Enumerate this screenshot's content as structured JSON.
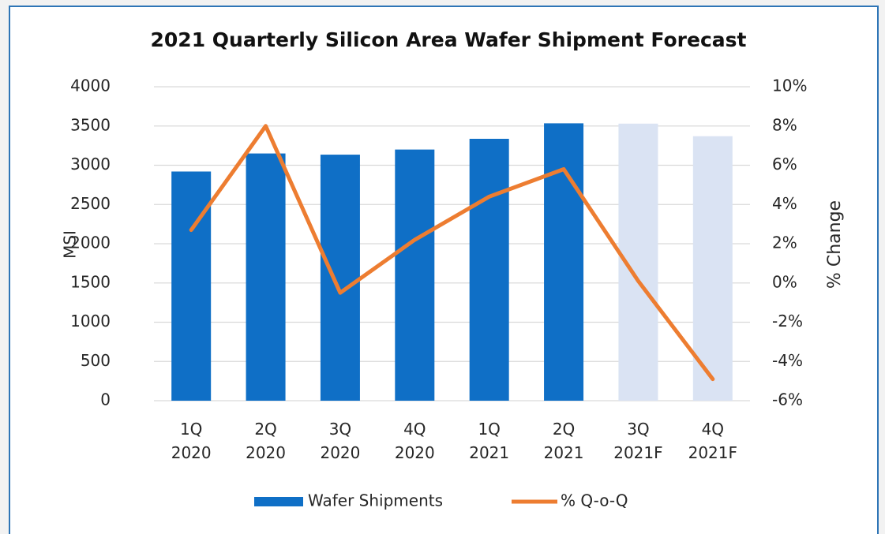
{
  "chart_data": {
    "type": "bar-line",
    "title": "2021 Quarterly Silicon Area Wafer Shipment Forecast",
    "y_label": "MSI",
    "y2_label": "% Change",
    "categories": [
      "1Q 2020",
      "2Q 2020",
      "3Q 2020",
      "4Q 2020",
      "1Q 2021",
      "2Q 2021",
      "3Q 2021F",
      "4Q 2021F"
    ],
    "series": [
      {
        "name": "Wafer Shipments",
        "type": "bar",
        "colors": [
          "#0f6fc6",
          "#0f6fc6",
          "#0f6fc6",
          "#0f6fc6",
          "#0f6fc6",
          "#0f6fc6",
          "#dae3f3",
          "#dae3f3"
        ],
        "values": [
          2920,
          3150,
          3135,
          3200,
          3337,
          3534,
          3530,
          3370
        ]
      },
      {
        "name": "% Q-o-Q",
        "type": "line",
        "axis": "y2",
        "color": "#ed7d31",
        "values": [
          2.7,
          8.0,
          -0.5,
          2.2,
          4.4,
          5.8,
          0.1,
          -4.9
        ]
      }
    ],
    "ylim": [
      0,
      4000
    ],
    "yticks": [
      0,
      500,
      1000,
      1500,
      2000,
      2500,
      3000,
      3500,
      4000
    ],
    "y2lim": [
      -6,
      10
    ],
    "y2ticks": [
      {
        "value": -6,
        "label": "-6%"
      },
      {
        "value": -4,
        "label": "-4%"
      },
      {
        "value": -2,
        "label": "-2%"
      },
      {
        "value": 0,
        "label": "0%"
      },
      {
        "value": 2,
        "label": "2%"
      },
      {
        "value": 4,
        "label": "4%"
      },
      {
        "value": 6,
        "label": "6%"
      },
      {
        "value": 8,
        "label": "8%"
      },
      {
        "value": 10,
        "label": "10%"
      }
    ],
    "grid": true,
    "legend": "bottom"
  }
}
